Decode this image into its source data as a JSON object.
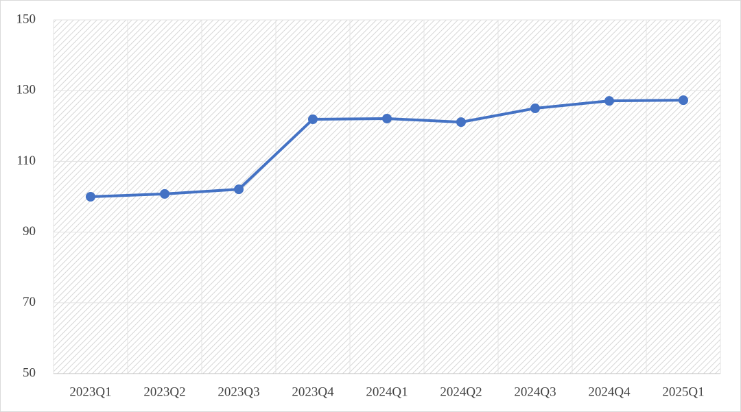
{
  "chart_data": {
    "type": "line",
    "categories": [
      "2023Q1",
      "2023Q2",
      "2023Q3",
      "2023Q4",
      "2024Q1",
      "2024Q2",
      "2024Q3",
      "2024Q4",
      "2025Q1"
    ],
    "series": [
      {
        "color": "#4472c4",
        "values": [
          100,
          100.8,
          102.1,
          121.9,
          122.1,
          121.1,
          125.0,
          127.1,
          127.3
        ]
      }
    ],
    "ylim": [
      50,
      150
    ],
    "yticks": [
      50,
      70,
      90,
      110,
      130,
      150
    ],
    "grid": true
  }
}
